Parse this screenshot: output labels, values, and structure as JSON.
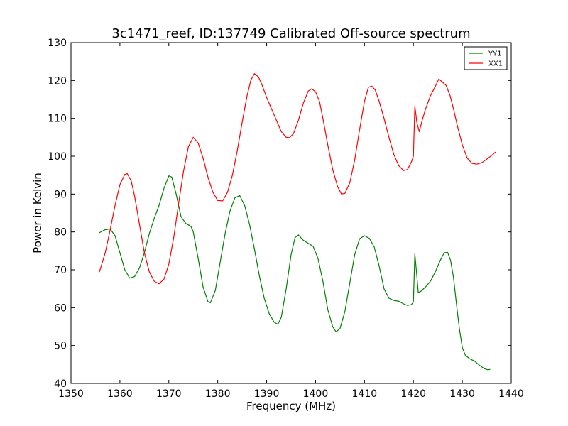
{
  "chart_data": {
    "type": "line",
    "title": "3c1471_reef, ID:137749 Calibrated Off-source spectrum",
    "xlabel": "Frequency (MHz)",
    "ylabel": "Power in Kelvin",
    "xlim": [
      1350,
      1440
    ],
    "ylim": [
      40,
      130
    ],
    "xticks": [
      1350,
      1360,
      1370,
      1380,
      1390,
      1400,
      1410,
      1420,
      1430,
      1440
    ],
    "yticks": [
      40,
      50,
      60,
      70,
      80,
      90,
      100,
      110,
      120,
      130
    ],
    "grid": false,
    "legend_position": "top-right",
    "series": [
      {
        "name": "YY1",
        "color": "#008000",
        "points": [
          [
            1355.8,
            79.8
          ],
          [
            1357.0,
            80.6
          ],
          [
            1358.0,
            80.8
          ],
          [
            1359.0,
            79.0
          ],
          [
            1360.0,
            74.5
          ],
          [
            1361.0,
            70.0
          ],
          [
            1362.0,
            67.8
          ],
          [
            1363.0,
            68.2
          ],
          [
            1364.0,
            70.5
          ],
          [
            1365.0,
            74.5
          ],
          [
            1366.0,
            79.5
          ],
          [
            1367.0,
            83.5
          ],
          [
            1368.0,
            87.0
          ],
          [
            1369.0,
            91.5
          ],
          [
            1370.0,
            94.8
          ],
          [
            1370.6,
            94.5
          ],
          [
            1371.5,
            90.0
          ],
          [
            1372.5,
            84.0
          ],
          [
            1373.5,
            82.2
          ],
          [
            1374.5,
            81.5
          ],
          [
            1375.0,
            80.0
          ],
          [
            1376.0,
            73.0
          ],
          [
            1377.0,
            65.5
          ],
          [
            1378.0,
            61.6
          ],
          [
            1378.5,
            61.3
          ],
          [
            1379.5,
            64.5
          ],
          [
            1380.5,
            72.0
          ],
          [
            1381.5,
            79.5
          ],
          [
            1382.5,
            85.5
          ],
          [
            1383.5,
            89.0
          ],
          [
            1384.5,
            89.6
          ],
          [
            1385.5,
            87.0
          ],
          [
            1386.5,
            82.0
          ],
          [
            1387.5,
            75.5
          ],
          [
            1388.5,
            68.5
          ],
          [
            1389.5,
            62.5
          ],
          [
            1390.5,
            58.5
          ],
          [
            1391.5,
            56.2
          ],
          [
            1392.3,
            55.6
          ],
          [
            1393.0,
            57.5
          ],
          [
            1394.0,
            65.0
          ],
          [
            1395.0,
            74.0
          ],
          [
            1395.8,
            78.5
          ],
          [
            1396.5,
            79.2
          ],
          [
            1397.5,
            77.8
          ],
          [
            1398.5,
            77.0
          ],
          [
            1399.5,
            76.2
          ],
          [
            1400.5,
            73.0
          ],
          [
            1401.5,
            67.0
          ],
          [
            1402.5,
            59.5
          ],
          [
            1403.5,
            55.0
          ],
          [
            1404.2,
            53.6
          ],
          [
            1405.0,
            54.5
          ],
          [
            1406.0,
            59.0
          ],
          [
            1407.0,
            66.5
          ],
          [
            1408.0,
            74.0
          ],
          [
            1409.0,
            78.2
          ],
          [
            1410.0,
            79.0
          ],
          [
            1411.0,
            78.3
          ],
          [
            1412.0,
            76.0
          ],
          [
            1413.0,
            71.0
          ],
          [
            1414.0,
            65.0
          ],
          [
            1415.0,
            62.5
          ],
          [
            1416.0,
            61.9
          ],
          [
            1417.0,
            61.7
          ],
          [
            1418.0,
            61.0
          ],
          [
            1418.8,
            60.6
          ],
          [
            1419.6,
            60.8
          ],
          [
            1420.0,
            61.5
          ],
          [
            1420.3,
            74.3
          ],
          [
            1420.7,
            68.5
          ],
          [
            1421.0,
            64.0
          ],
          [
            1421.5,
            64.3
          ],
          [
            1422.5,
            65.5
          ],
          [
            1423.5,
            67.0
          ],
          [
            1424.5,
            69.5
          ],
          [
            1425.5,
            72.5
          ],
          [
            1426.3,
            74.5
          ],
          [
            1427.0,
            74.6
          ],
          [
            1427.6,
            72.5
          ],
          [
            1428.2,
            68.0
          ],
          [
            1428.8,
            61.0
          ],
          [
            1429.4,
            54.5
          ],
          [
            1430.0,
            49.5
          ],
          [
            1430.6,
            47.5
          ],
          [
            1431.5,
            46.5
          ],
          [
            1432.5,
            45.9
          ],
          [
            1433.5,
            44.8
          ],
          [
            1434.5,
            43.9
          ],
          [
            1435.2,
            43.6
          ],
          [
            1435.7,
            43.7
          ]
        ]
      },
      {
        "name": "XX1",
        "color": "#ff0000",
        "points": [
          [
            1355.8,
            69.4
          ],
          [
            1357.0,
            74.5
          ],
          [
            1358.0,
            80.5
          ],
          [
            1359.0,
            87.0
          ],
          [
            1360.0,
            92.5
          ],
          [
            1361.0,
            95.2
          ],
          [
            1361.5,
            95.4
          ],
          [
            1362.3,
            93.5
          ],
          [
            1363.0,
            89.5
          ],
          [
            1364.0,
            82.0
          ],
          [
            1365.0,
            74.5
          ],
          [
            1366.0,
            69.5
          ],
          [
            1367.0,
            67.0
          ],
          [
            1368.0,
            66.3
          ],
          [
            1369.0,
            67.5
          ],
          [
            1370.0,
            71.5
          ],
          [
            1371.0,
            78.5
          ],
          [
            1372.0,
            87.5
          ],
          [
            1373.0,
            96.0
          ],
          [
            1374.0,
            102.5
          ],
          [
            1375.0,
            105.0
          ],
          [
            1376.0,
            103.5
          ],
          [
            1377.0,
            99.5
          ],
          [
            1378.0,
            94.5
          ],
          [
            1379.0,
            90.5
          ],
          [
            1380.0,
            88.3
          ],
          [
            1381.0,
            88.2
          ],
          [
            1382.0,
            90.5
          ],
          [
            1383.0,
            95.0
          ],
          [
            1384.0,
            101.5
          ],
          [
            1385.0,
            109.0
          ],
          [
            1386.0,
            116.0
          ],
          [
            1386.8,
            120.2
          ],
          [
            1387.5,
            121.8
          ],
          [
            1388.3,
            121.0
          ],
          [
            1389.0,
            119.0
          ],
          [
            1390.0,
            115.5
          ],
          [
            1391.0,
            112.5
          ],
          [
            1392.0,
            109.5
          ],
          [
            1393.0,
            106.5
          ],
          [
            1394.0,
            105.0
          ],
          [
            1394.7,
            104.9
          ],
          [
            1395.5,
            106.0
          ],
          [
            1396.5,
            109.5
          ],
          [
            1397.5,
            114.0
          ],
          [
            1398.5,
            117.2
          ],
          [
            1399.2,
            117.8
          ],
          [
            1400.0,
            117.0
          ],
          [
            1400.8,
            114.5
          ],
          [
            1401.5,
            110.0
          ],
          [
            1402.5,
            103.0
          ],
          [
            1403.5,
            96.5
          ],
          [
            1404.5,
            92.0
          ],
          [
            1405.3,
            90.0
          ],
          [
            1406.0,
            90.2
          ],
          [
            1407.0,
            93.0
          ],
          [
            1408.0,
            99.0
          ],
          [
            1409.0,
            107.0
          ],
          [
            1410.0,
            114.5
          ],
          [
            1410.8,
            118.2
          ],
          [
            1411.5,
            118.5
          ],
          [
            1412.2,
            117.5
          ],
          [
            1413.0,
            114.5
          ],
          [
            1414.0,
            110.0
          ],
          [
            1415.0,
            105.0
          ],
          [
            1416.0,
            100.5
          ],
          [
            1417.0,
            97.5
          ],
          [
            1418.0,
            96.2
          ],
          [
            1418.8,
            96.5
          ],
          [
            1419.6,
            98.5
          ],
          [
            1420.0,
            100.0
          ],
          [
            1420.3,
            113.3
          ],
          [
            1420.7,
            109.0
          ],
          [
            1421.2,
            106.5
          ],
          [
            1421.8,
            109.5
          ],
          [
            1422.5,
            112.5
          ],
          [
            1423.5,
            116.0
          ],
          [
            1424.5,
            118.5
          ],
          [
            1425.2,
            120.4
          ],
          [
            1426.0,
            119.5
          ],
          [
            1426.7,
            118.7
          ],
          [
            1427.5,
            116.0
          ],
          [
            1428.2,
            112.5
          ],
          [
            1429.0,
            108.0
          ],
          [
            1430.0,
            103.0
          ],
          [
            1431.0,
            99.5
          ],
          [
            1432.0,
            98.1
          ],
          [
            1433.0,
            97.9
          ],
          [
            1434.0,
            98.3
          ],
          [
            1435.0,
            99.2
          ],
          [
            1436.0,
            100.2
          ],
          [
            1436.8,
            101.1
          ]
        ]
      }
    ]
  }
}
